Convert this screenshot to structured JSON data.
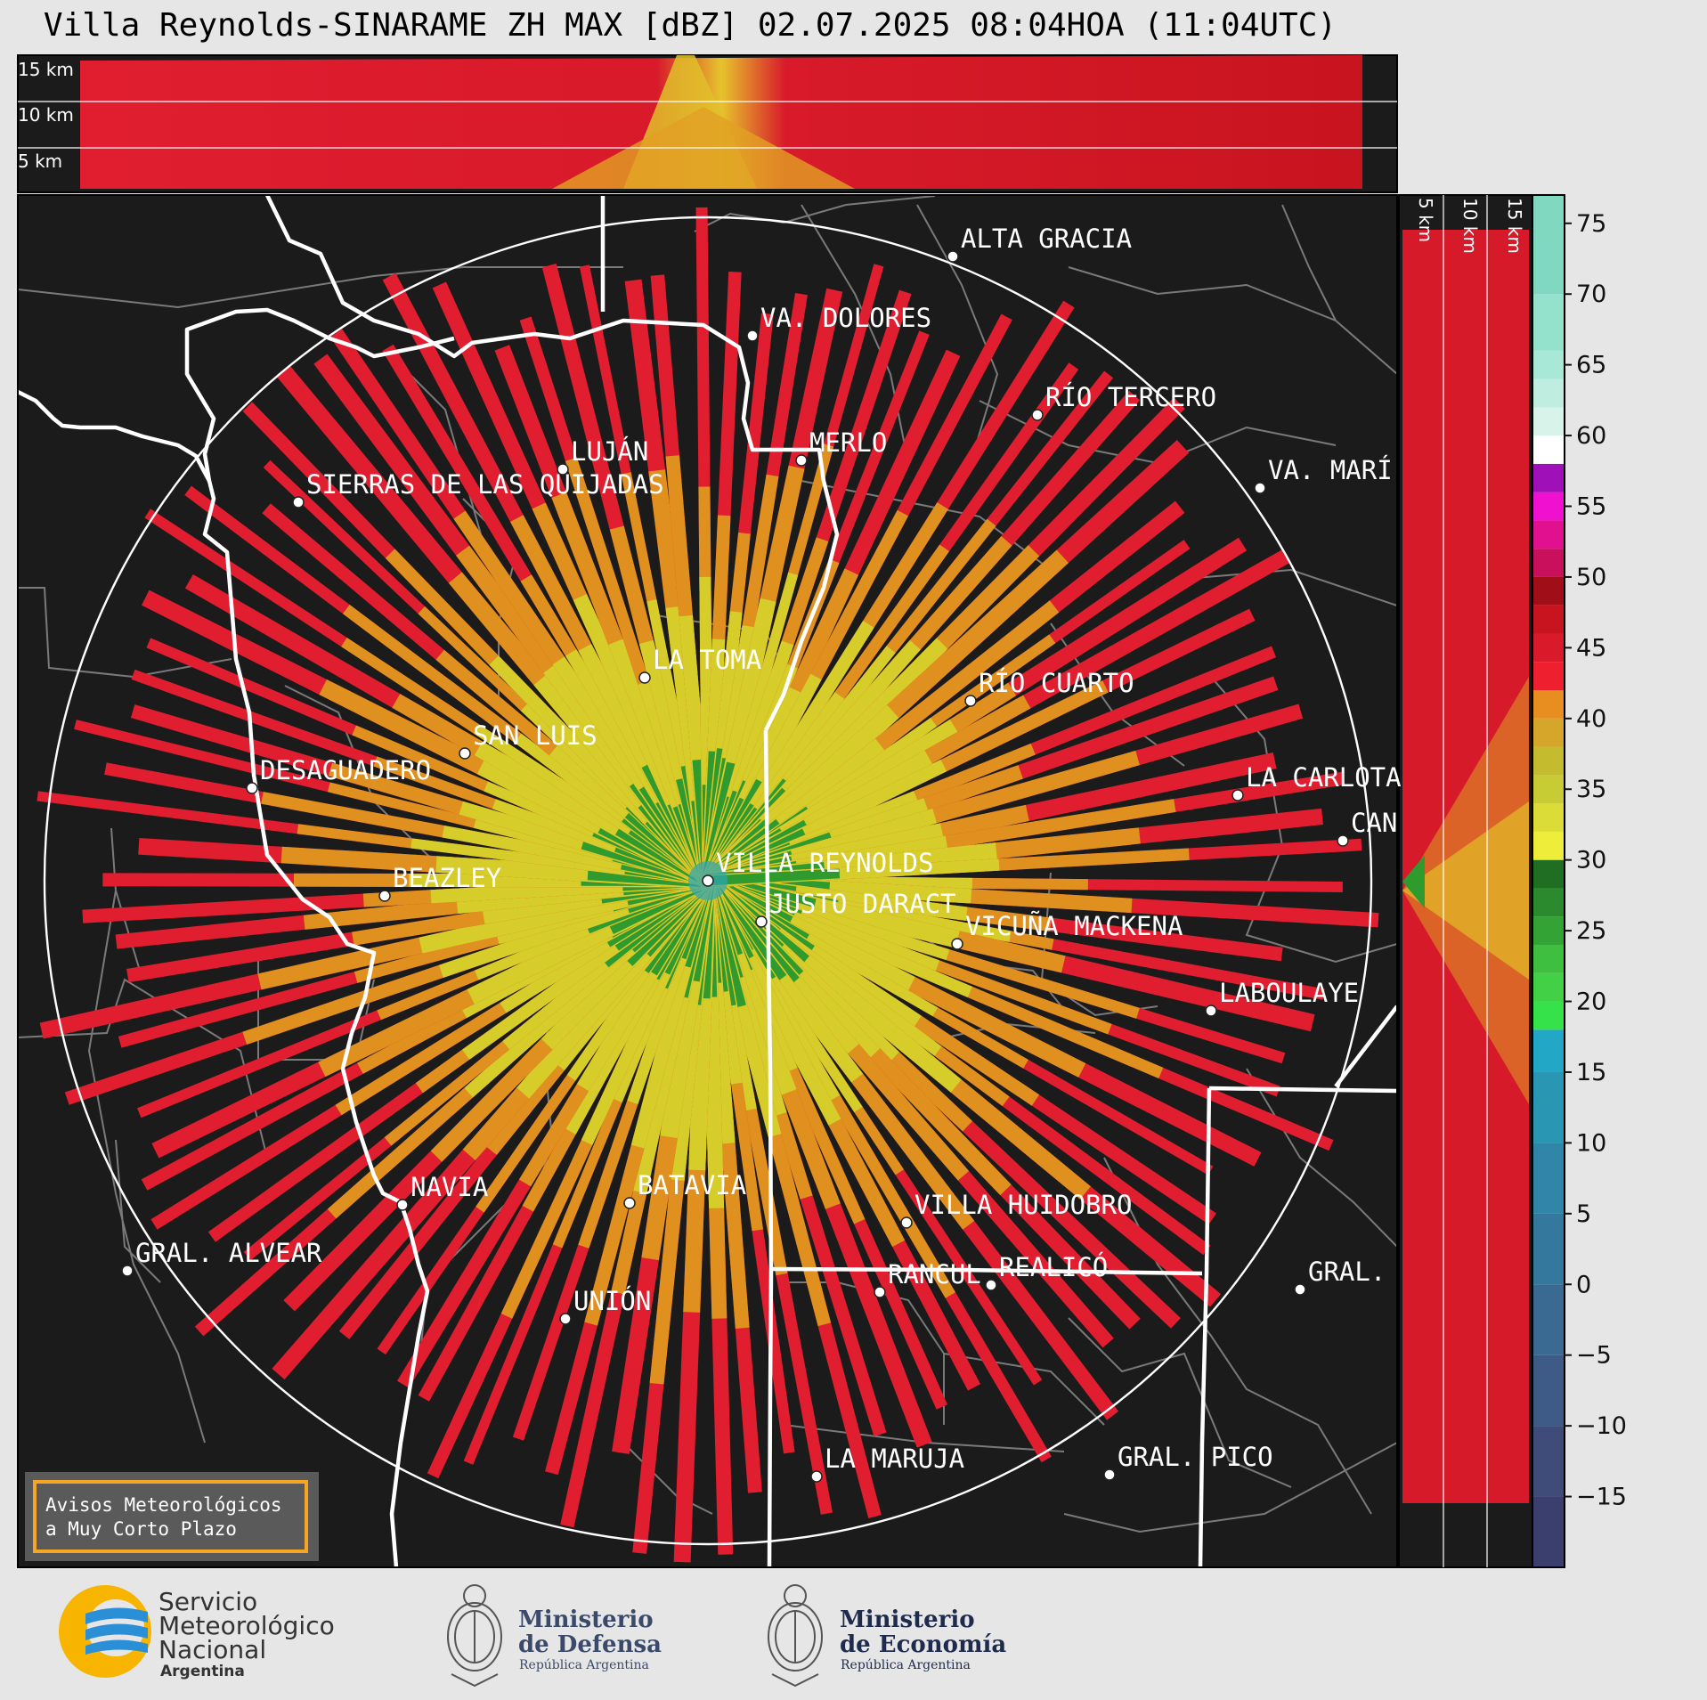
{
  "title": "Villa Reynolds-SINARAME ZH MAX [dBZ] 02.07.2025 08:04HOA (11:04UTC)",
  "top_panel_labels": [
    "15 km",
    "10 km",
    "5 km"
  ],
  "side_panel_labels": [
    "5 km",
    "10 km",
    "15 km"
  ],
  "colorbar": {
    "ticks": [
      "75",
      "70",
      "65",
      "60",
      "55",
      "50",
      "45",
      "40",
      "35",
      "30",
      "25",
      "20",
      "15",
      "10",
      "5",
      "0",
      "−5",
      "−10",
      "−15"
    ],
    "range": [
      -20,
      77
    ]
  },
  "places": [
    {
      "name": "ALTA GRACIA"
    },
    {
      "name": "VA. DOLORES"
    },
    {
      "name": "RÍO TERCERO"
    },
    {
      "name": "MERLO"
    },
    {
      "name": "LUJÁN"
    },
    {
      "name": "VA. MARÍ"
    },
    {
      "name": "SIERRAS DE LAS QUIJADAS"
    },
    {
      "name": "LA TOMA"
    },
    {
      "name": "RÍO CUARTO"
    },
    {
      "name": "SAN LUIS"
    },
    {
      "name": "DESAGUADERO"
    },
    {
      "name": "LA CARLOTA"
    },
    {
      "name": "CAN"
    },
    {
      "name": "VILLA REYNOLDS"
    },
    {
      "name": "BEAZLEY"
    },
    {
      "name": "JUSTO DARACT"
    },
    {
      "name": "VICUÑA MACKENA"
    },
    {
      "name": "LABOULAYE"
    },
    {
      "name": "NAVIA"
    },
    {
      "name": "BATAVIA"
    },
    {
      "name": "VILLA HUIDOBRO"
    },
    {
      "name": "GRAL. ALVEAR"
    },
    {
      "name": "RANCUL"
    },
    {
      "name": "REALICÓ"
    },
    {
      "name": "GRAL."
    },
    {
      "name": "UNIÓN"
    },
    {
      "name": "LA MARUJA"
    },
    {
      "name": "GRAL. PICO"
    }
  ],
  "warning_box": {
    "line1": "Avisos Meteorológicos",
    "line2": "a Muy Corto Plazo"
  },
  "logos": {
    "smn": {
      "line1": "Servicio",
      "line2": "Meteorológico",
      "line3": "Nacional",
      "line4": "Argentina"
    },
    "defensa": {
      "line1": "Ministerio",
      "line2": "de Defensa",
      "line3": "República Argentina"
    },
    "economia": {
      "line1": "Ministerio",
      "line2": "de Economía",
      "line3": "República Argentina"
    }
  },
  "colors": {
    "background": "#1b1b1b",
    "outer": "#e6e6e6",
    "border_line": "#ffffff",
    "dept_line": "#7a7a7a"
  }
}
